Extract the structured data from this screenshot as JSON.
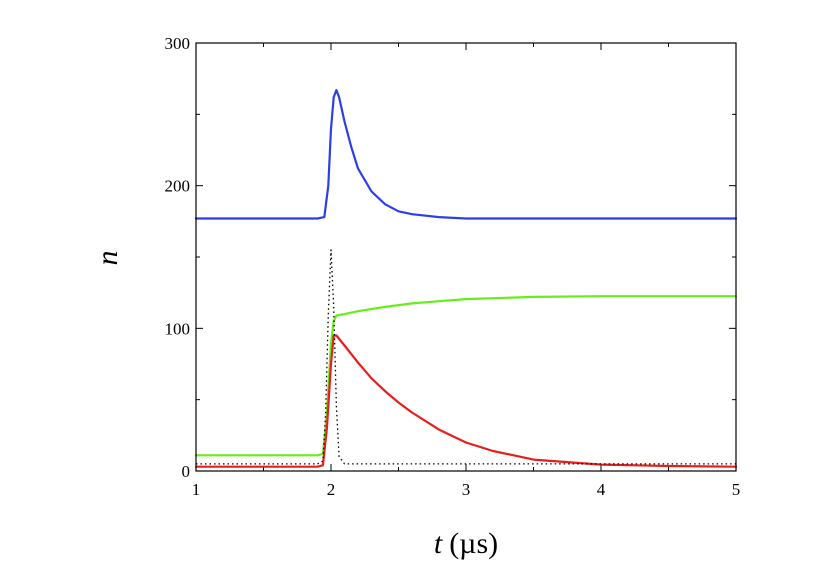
{
  "chart_data": {
    "type": "line",
    "xlabel_italic": "t",
    "xlabel_unit": "(µs)",
    "ylabel": "n",
    "xlim": [
      1,
      5
    ],
    "ylim": [
      0,
      300
    ],
    "xticks": [
      1,
      2,
      3,
      4,
      5
    ],
    "xticks_minor": [
      1.5,
      2.5,
      3.5,
      4.5
    ],
    "yticks": [
      0,
      100,
      200,
      300
    ],
    "yticks_minor": [
      50,
      150,
      250
    ],
    "grid": false,
    "legend": "none",
    "series": [
      {
        "color": "#2b3fe6",
        "style": "solid",
        "x": [
          1.0,
          1.5,
          1.9,
          1.95,
          1.98,
          2.0,
          2.02,
          2.04,
          2.06,
          2.1,
          2.15,
          2.2,
          2.3,
          2.4,
          2.5,
          2.6,
          2.8,
          3.0,
          3.5,
          4.0,
          5.0
        ],
        "y": [
          177,
          177,
          177,
          178,
          200,
          240,
          262,
          267,
          262,
          245,
          227,
          212,
          196,
          187,
          182,
          180,
          178,
          177,
          177,
          177,
          177
        ]
      },
      {
        "color": "#66ee1a",
        "style": "solid",
        "x": [
          1.0,
          1.5,
          1.9,
          1.94,
          1.97,
          2.0,
          2.02,
          2.04,
          2.1,
          2.2,
          2.4,
          2.6,
          2.8,
          3.0,
          3.5,
          4.0,
          4.5,
          5.0
        ],
        "y": [
          11,
          11,
          11,
          12,
          40,
          90,
          105,
          109,
          110,
          112,
          115,
          117.5,
          119,
          120.5,
          122,
          122.5,
          122.5,
          122.5
        ]
      },
      {
        "color": "#e61e1e",
        "style": "solid",
        "x": [
          1.0,
          1.5,
          1.9,
          1.94,
          1.97,
          2.0,
          2.02,
          2.04,
          2.1,
          2.2,
          2.3,
          2.4,
          2.5,
          2.6,
          2.8,
          3.0,
          3.2,
          3.5,
          4.0,
          4.5,
          5.0
        ],
        "y": [
          3,
          3,
          3,
          4,
          30,
          75,
          95,
          95,
          88,
          76,
          65,
          56,
          48,
          41,
          29,
          20,
          14,
          8,
          4.5,
          3.5,
          3
        ]
      },
      {
        "color": "#000000",
        "style": "dotted",
        "x": [
          1.0,
          1.5,
          1.9,
          1.94,
          1.96,
          1.98,
          2.0,
          2.02,
          2.04,
          2.06,
          2.1,
          3.0,
          4.0,
          5.0
        ],
        "y": [
          5,
          5,
          5,
          7,
          40,
          110,
          155,
          115,
          45,
          10,
          5,
          5,
          5,
          5
        ]
      }
    ]
  }
}
